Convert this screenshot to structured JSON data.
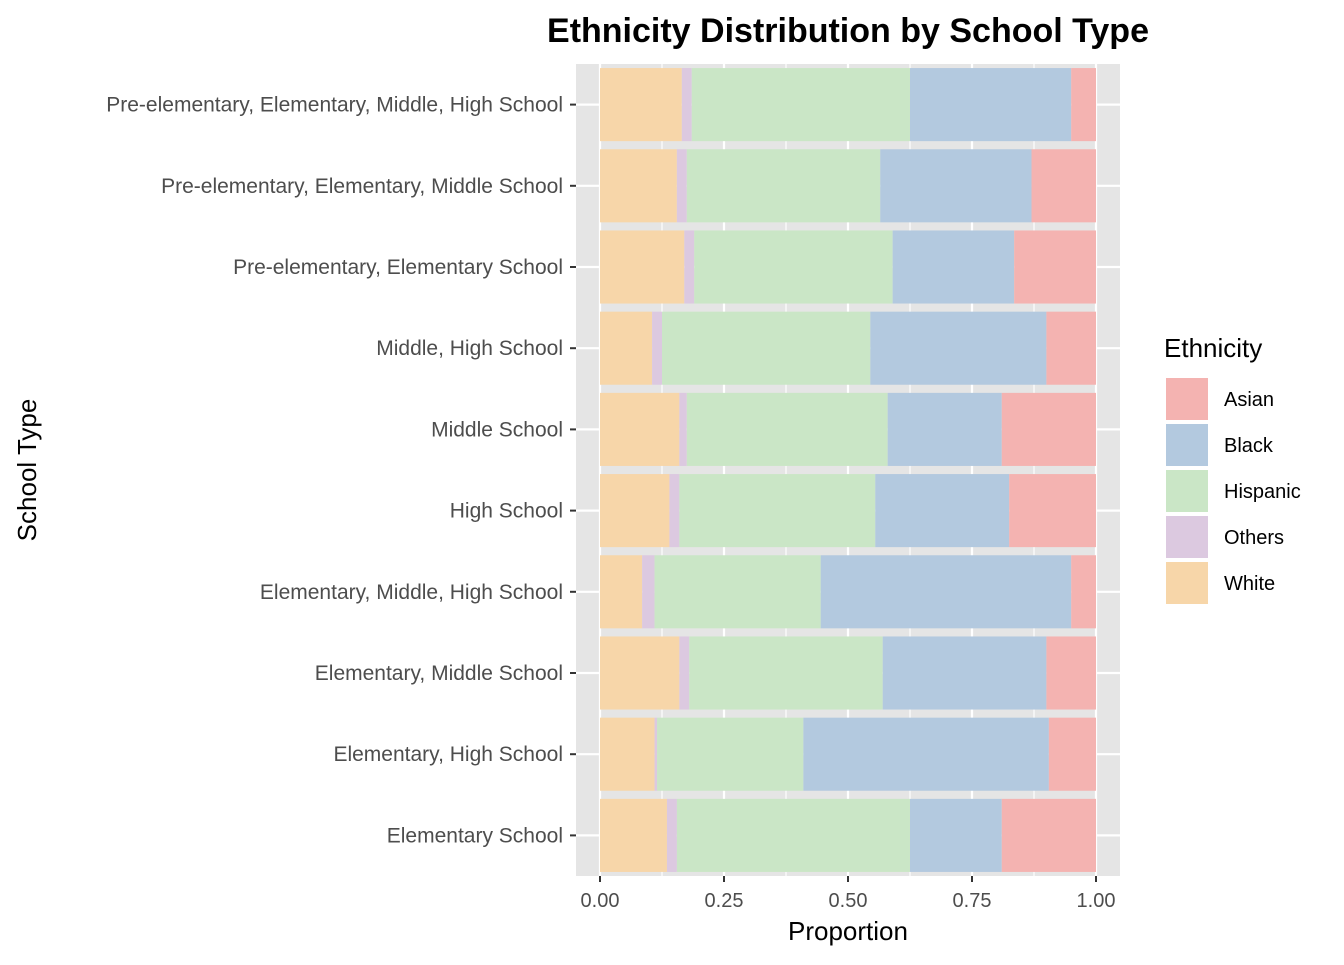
{
  "chart_data": {
    "type": "bar",
    "orientation": "horizontal",
    "stacked": true,
    "title": "Ethnicity Distribution by School Type",
    "xlabel": "Proportion",
    "ylabel": "School Type",
    "xlim": [
      0,
      1
    ],
    "x_ticks": [
      "0.00",
      "0.25",
      "0.50",
      "0.75",
      "1.00"
    ],
    "x_tick_values": [
      0,
      0.25,
      0.5,
      0.75,
      1.0
    ],
    "grid": true,
    "legend": {
      "title": "Ethnicity",
      "position": "right"
    },
    "categories": [
      "Pre-elementary, Elementary, Middle, High School",
      "Pre-elementary, Elementary, Middle School",
      "Pre-elementary, Elementary School",
      "Middle, High School",
      "Middle School",
      "High School",
      "Elementary, Middle, High School",
      "Elementary, Middle School",
      "Elementary, High School",
      "Elementary School"
    ],
    "stack_order": [
      "White",
      "Others",
      "Hispanic",
      "Black",
      "Asian"
    ],
    "series": [
      {
        "name": "Asian",
        "color": "#F4B3B1",
        "values": [
          0.05,
          0.13,
          0.165,
          0.1,
          0.19,
          0.175,
          0.05,
          0.1,
          0.095,
          0.19
        ]
      },
      {
        "name": "Black",
        "color": "#B3C9DF",
        "values": [
          0.325,
          0.305,
          0.245,
          0.355,
          0.23,
          0.27,
          0.505,
          0.33,
          0.495,
          0.185
        ]
      },
      {
        "name": "Hispanic",
        "color": "#CAE6C6",
        "values": [
          0.44,
          0.39,
          0.4,
          0.42,
          0.405,
          0.395,
          0.335,
          0.39,
          0.295,
          0.47
        ]
      },
      {
        "name": "Others",
        "color": "#DCC9E0",
        "values": [
          0.02,
          0.02,
          0.02,
          0.02,
          0.015,
          0.02,
          0.025,
          0.02,
          0.005,
          0.02
        ]
      },
      {
        "name": "White",
        "color": "#F7D6A9",
        "values": [
          0.165,
          0.155,
          0.17,
          0.105,
          0.16,
          0.14,
          0.085,
          0.16,
          0.11,
          0.135
        ]
      }
    ],
    "colors": {
      "panel_background": "#E5E5E5",
      "gridline": "#FFFFFF"
    }
  }
}
